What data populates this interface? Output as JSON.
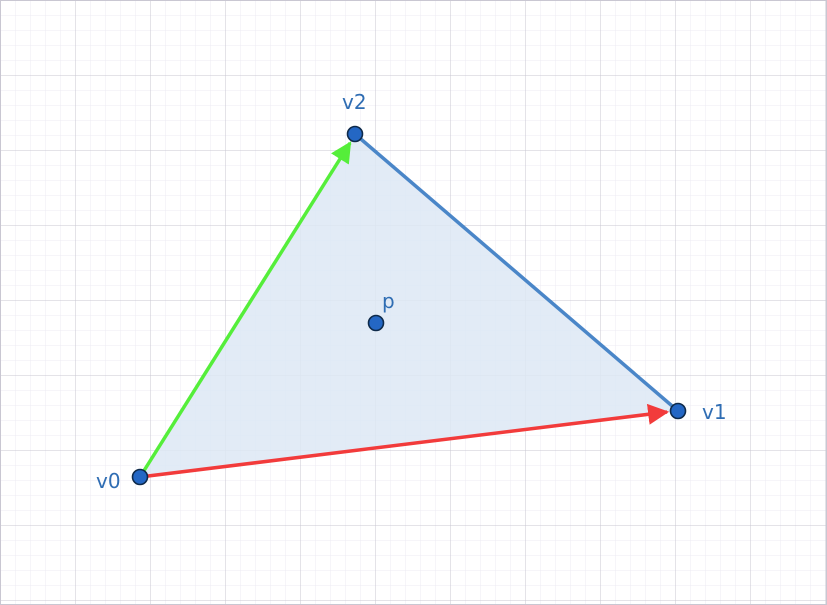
{
  "colors": {
    "background": "#ffffff",
    "grid_minor": "#ecebf3",
    "grid_major": "#c9c7d2",
    "triangle_fill": "#dde7f4",
    "edge_v1_v2": "#4a86c8",
    "vector_v0_v2": "#55ee3a",
    "vector_v0_v1": "#f23b3b",
    "point_fill": "#2467c4",
    "point_stroke": "#0e2a4a",
    "label": "#2f6db3"
  },
  "points": {
    "v0": {
      "label": "v0"
    },
    "v1": {
      "label": "v1"
    },
    "v2": {
      "label": "v2"
    },
    "p": {
      "label": "p"
    }
  }
}
